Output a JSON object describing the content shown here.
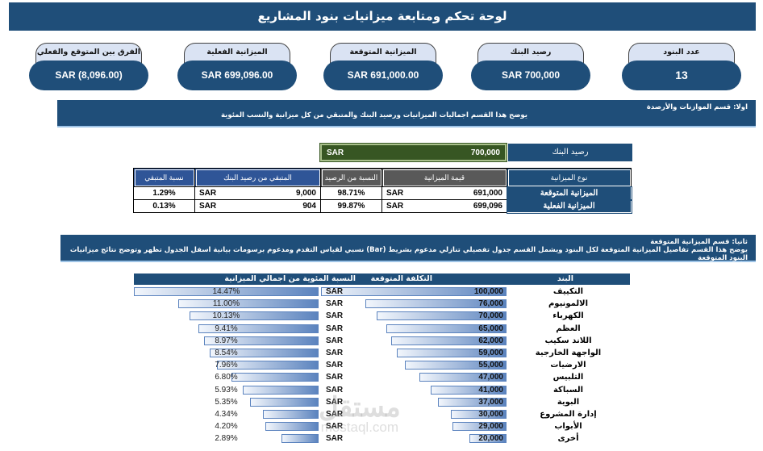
{
  "title": "لوحة تحكم ومتابعة ميزانيات بنود المشاريع",
  "kpis": [
    {
      "label": "الفرق بين المتوقع والفعلي",
      "value": "SAR (8,096.00)"
    },
    {
      "label": "الميزانية الفعلية",
      "value": "SAR 699,096.00"
    },
    {
      "label": "الميزانية المتوقعة",
      "value": "SAR 691,000.00"
    },
    {
      "label": "رصيد البنك",
      "value": "SAR 700,000"
    },
    {
      "label": "عدد البنود",
      "value": "13"
    }
  ],
  "section1": {
    "title": "اولا: قسم الموازنات والأرصدة",
    "description": "يوضح هذا القسم اجماليات الميزانيات ورصيد البنك والمتبقي من كل ميزانية والنسب المئوية"
  },
  "bank_balance": {
    "label": "رصيد البنك",
    "currency": "SAR",
    "value": "700,000"
  },
  "budget_table": {
    "headers": {
      "remaining_pct": "نسبة المتبقي",
      "remaining": "المتبقي من رصيد البنك",
      "pct_of_balance": "النسبة من الرصيد",
      "budget_value": "قيمة الميزانية",
      "budget_type": "نوع الميزانية"
    },
    "rows": [
      {
        "remaining_pct": "1.29%",
        "currency": "SAR",
        "remaining": "9,000",
        "pct_of_balance": "98.71%",
        "currency2": "SAR",
        "budget_value": "691,000",
        "budget_type": "الميزانية المتوقعة"
      },
      {
        "remaining_pct": "0.13%",
        "currency": "SAR",
        "remaining": "904",
        "pct_of_balance": "99.87%",
        "currency2": "SAR",
        "budget_value": "699,096",
        "budget_type": "الميزانية الفعلية"
      }
    ]
  },
  "section2": {
    "title": "ثانيا: قسم الميزانية المتوقعة",
    "description": "يوضح هذا القسم تفاصيل الميزانية المتوقعة لكل البنود ويشمل القسم جدول تفصيلي تنازلي مدعوم بشريط (Bar) نسبي لقياس التقدم ومدعوم برسومات بيانية اسفل الجدول تظهر وتوضح نتائج ميزانيات البنود المتوقعة"
  },
  "items_table": {
    "headers": {
      "item": "البند",
      "expected_cost": "التكلفة المتوقعة",
      "pct_of_total": "النسبة المئوية من اجمالي الميزانية"
    },
    "rows": [
      {
        "item": "التكييف",
        "currency": "SAR",
        "cost": "100,000",
        "pct": "14.47%"
      },
      {
        "item": "الالمونيوم",
        "currency": "SAR",
        "cost": "76,000",
        "pct": "11.00%"
      },
      {
        "item": "الكهرباء",
        "currency": "SAR",
        "cost": "70,000",
        "pct": "10.13%"
      },
      {
        "item": "العظم",
        "currency": "SAR",
        "cost": "65,000",
        "pct": "9.41%"
      },
      {
        "item": "اللاند سكيب",
        "currency": "SAR",
        "cost": "62,000",
        "pct": "8.97%"
      },
      {
        "item": "الواجهة الخارجية",
        "currency": "SAR",
        "cost": "59,000",
        "pct": "8.54%"
      },
      {
        "item": "الارضيات",
        "currency": "SAR",
        "cost": "55,000",
        "pct": "7.96%"
      },
      {
        "item": "التلبيس",
        "currency": "SAR",
        "cost": "47,000",
        "pct": "6.80%"
      },
      {
        "item": "السباكة",
        "currency": "SAR",
        "cost": "41,000",
        "pct": "5.93%"
      },
      {
        "item": "البوية",
        "currency": "SAR",
        "cost": "37,000",
        "pct": "5.35%"
      },
      {
        "item": "إدارة المشروع",
        "currency": "SAR",
        "cost": "30,000",
        "pct": "4.34%"
      },
      {
        "item": "الأبواب",
        "currency": "SAR",
        "cost": "29,000",
        "pct": "4.20%"
      },
      {
        "item": "أخرى",
        "currency": "SAR",
        "cost": "20,000",
        "pct": "2.89%"
      }
    ]
  },
  "colors": {
    "primary": "#1f4e79",
    "bank_green": "#375623",
    "header_gray": "#595959",
    "header_blue": "#2f5597",
    "kpi_label_bg": "#dae3f3",
    "bar": "#5b83be"
  },
  "watermark": {
    "arabic": "مستقل",
    "latin": "mostaql.com"
  }
}
